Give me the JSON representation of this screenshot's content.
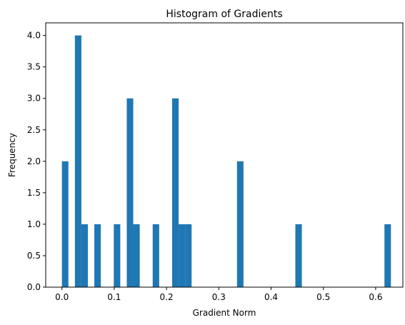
{
  "chart_data": {
    "type": "bar",
    "title": "Histogram of Gradients",
    "xlabel": "Gradient Norm",
    "ylabel": "Frequency",
    "xlim": [
      -0.031,
      0.652
    ],
    "ylim": [
      0,
      4.2
    ],
    "bar_color": "#1f77b4",
    "bin_width": 0.0124,
    "bins": [
      {
        "x": 0.0,
        "count": 2
      },
      {
        "x": 0.0248,
        "count": 4
      },
      {
        "x": 0.0372,
        "count": 1
      },
      {
        "x": 0.062,
        "count": 1
      },
      {
        "x": 0.0992,
        "count": 1
      },
      {
        "x": 0.124,
        "count": 3
      },
      {
        "x": 0.1364,
        "count": 1
      },
      {
        "x": 0.1736,
        "count": 1
      },
      {
        "x": 0.2108,
        "count": 3
      },
      {
        "x": 0.2232,
        "count": 1
      },
      {
        "x": 0.2356,
        "count": 1
      },
      {
        "x": 0.3348,
        "count": 2
      },
      {
        "x": 0.4464,
        "count": 1
      },
      {
        "x": 0.6168,
        "count": 1
      }
    ],
    "xticks": [
      {
        "value": 0.0,
        "label": "0.0"
      },
      {
        "value": 0.1,
        "label": "0.1"
      },
      {
        "value": 0.2,
        "label": "0.2"
      },
      {
        "value": 0.3,
        "label": "0.3"
      },
      {
        "value": 0.4,
        "label": "0.4"
      },
      {
        "value": 0.5,
        "label": "0.5"
      },
      {
        "value": 0.6,
        "label": "0.6"
      }
    ],
    "yticks": [
      {
        "value": 0.0,
        "label": "0.0"
      },
      {
        "value": 0.5,
        "label": "0.5"
      },
      {
        "value": 1.0,
        "label": "1.0"
      },
      {
        "value": 1.5,
        "label": "1.5"
      },
      {
        "value": 2.0,
        "label": "2.0"
      },
      {
        "value": 2.5,
        "label": "2.5"
      },
      {
        "value": 3.0,
        "label": "3.0"
      },
      {
        "value": 3.5,
        "label": "3.5"
      },
      {
        "value": 4.0,
        "label": "4.0"
      }
    ],
    "grid": false,
    "legend": "none"
  }
}
